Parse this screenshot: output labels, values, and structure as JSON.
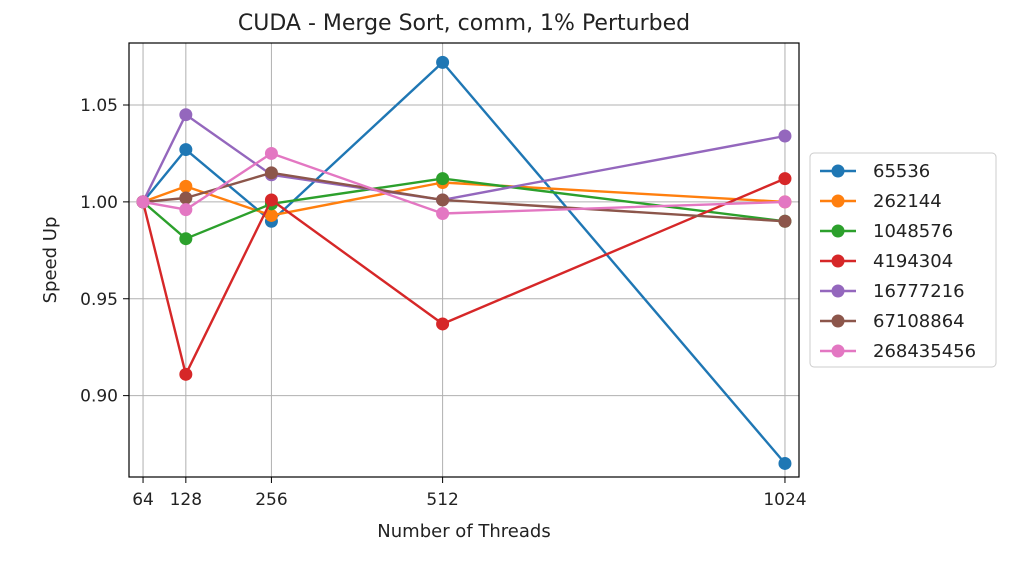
{
  "chart_data": {
    "type": "line",
    "title": "CUDA - Merge Sort, comm, 1% Perturbed",
    "xlabel": "Number of Threads",
    "ylabel": "Speed Up",
    "x": [
      64,
      128,
      256,
      512,
      1024
    ],
    "x_tick_labels": [
      "64",
      "128",
      "256",
      "512",
      "1024"
    ],
    "y_ticks": [
      0.9,
      0.95,
      1.0,
      1.05
    ],
    "y_tick_labels": [
      "0.90",
      "0.95",
      "1.00",
      "1.05"
    ],
    "xlim": [
      43,
      1045
    ],
    "ylim": [
      0.858,
      1.082
    ],
    "grid": true,
    "legend_position": "right-outside",
    "series": [
      {
        "name": "65536",
        "color": "#1f77b4",
        "values": [
          1.0,
          1.027,
          0.99,
          1.072,
          0.865
        ]
      },
      {
        "name": "262144",
        "color": "#ff7f0e",
        "values": [
          1.0,
          1.008,
          0.993,
          1.01,
          1.0
        ]
      },
      {
        "name": "1048576",
        "color": "#2ca02c",
        "values": [
          1.0,
          0.981,
          0.999,
          1.012,
          0.99
        ]
      },
      {
        "name": "4194304",
        "color": "#d62728",
        "values": [
          1.0,
          0.911,
          1.001,
          0.937,
          1.012
        ]
      },
      {
        "name": "16777216",
        "color": "#9467bd",
        "values": [
          1.0,
          1.045,
          1.014,
          1.001,
          1.034
        ]
      },
      {
        "name": "67108864",
        "color": "#8c564b",
        "values": [
          1.0,
          1.002,
          1.015,
          1.001,
          0.99
        ]
      },
      {
        "name": "268435456",
        "color": "#e377c2",
        "values": [
          1.0,
          0.996,
          1.025,
          0.994,
          1.0
        ]
      }
    ]
  }
}
